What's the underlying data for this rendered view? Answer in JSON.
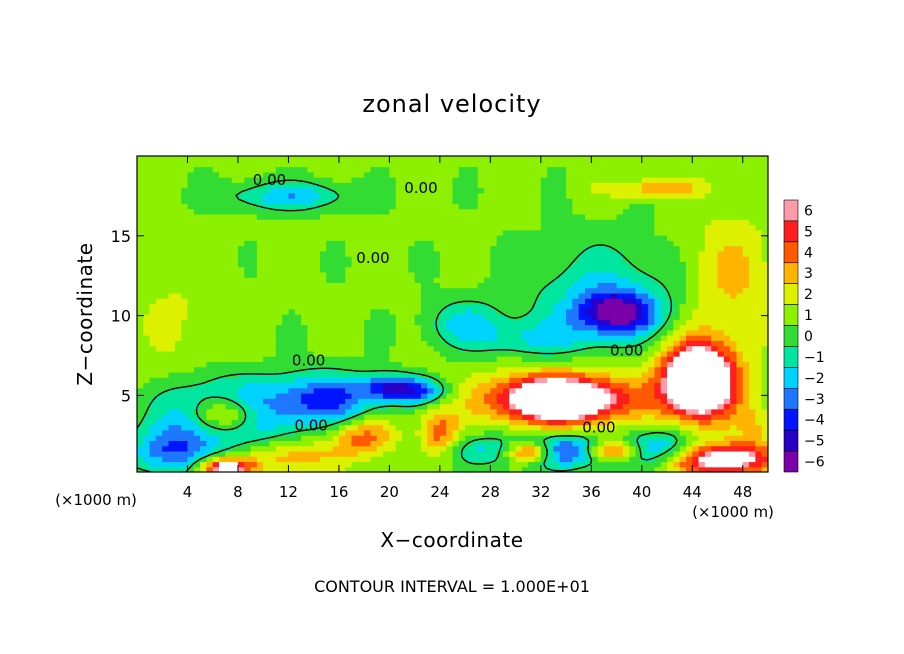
{
  "chart_data": {
    "type": "heatmap",
    "title": "zonal velocity",
    "xlabel": "X−coordinate",
    "ylabel": "Z−coordinate",
    "x_unit": "(×1000 m)",
    "footer": "CONTOUR INTERVAL = 1.000E+01",
    "xlim": [
      0,
      50
    ],
    "ylim": [
      0.2,
      20
    ],
    "x_ticks": [
      4,
      8,
      12,
      16,
      20,
      24,
      28,
      32,
      36,
      40,
      44,
      48
    ],
    "x_tick_labels": [
      "4",
      "8",
      "12",
      "16",
      "20",
      "24",
      "28",
      "32",
      "36",
      "40",
      "44",
      "48"
    ],
    "y_ticks": [
      5,
      10,
      15
    ],
    "y_tick_labels": [
      "5",
      "10",
      "15"
    ],
    "colorbar": {
      "levels": [
        -6,
        -5,
        -4,
        -3,
        -2,
        -1,
        0,
        1,
        2,
        3,
        4,
        5,
        6
      ],
      "labels": [
        "−6",
        "−5",
        "−4",
        "−3",
        "−2",
        "−1",
        "0",
        "1",
        "2",
        "3",
        "4",
        "5",
        "6"
      ],
      "colors": [
        "#7a00a8",
        "#2800c8",
        "#0014ff",
        "#1e78ff",
        "#00d2ff",
        "#00e6a0",
        "#32dc32",
        "#8cf000",
        "#dcf000",
        "#ffb400",
        "#ff5a00",
        "#ff1e1e",
        "#ff9aa8"
      ]
    },
    "contour_labels": [
      {
        "text": "0.00",
        "x": 10.5,
        "z": 18.5
      },
      {
        "text": "0.00",
        "x": 22.5,
        "z": 18.0
      },
      {
        "text": "0.00",
        "x": 18.7,
        "z": 13.6
      },
      {
        "text": "0.00",
        "x": 13.6,
        "z": 7.2
      },
      {
        "text": "0.00",
        "x": 13.8,
        "z": 3.1
      },
      {
        "text": "0.00",
        "x": 38.8,
        "z": 7.8
      },
      {
        "text": "0.00",
        "x": 36.6,
        "z": 3.0
      }
    ],
    "field_features": [
      {
        "kind": "mean",
        "value": 1.2
      },
      {
        "kind": "blob",
        "x": 38.0,
        "z": 10.2,
        "rx": 3.0,
        "rz": 1.3,
        "value": -5
      },
      {
        "kind": "blob",
        "x": 37.0,
        "z": 11.0,
        "rx": 6.0,
        "rz": 3.5,
        "value": -1.5
      },
      {
        "kind": "blob",
        "x": 47.0,
        "z": 12.5,
        "rx": 3.5,
        "rz": 4.0,
        "value": 3.5
      },
      {
        "kind": "blob",
        "x": 12.0,
        "z": 17.5,
        "rx": 5.0,
        "rz": 0.9,
        "value": -2
      },
      {
        "kind": "blob",
        "x": 41.0,
        "z": 18.0,
        "rx": 4.0,
        "rz": 0.6,
        "value": 4
      },
      {
        "kind": "blob",
        "x": 3.0,
        "z": 10.0,
        "rx": 4.0,
        "rz": 4.0,
        "value": 2.2
      },
      {
        "kind": "blob",
        "x": 26.0,
        "z": 9.5,
        "rx": 3.0,
        "rz": 1.5,
        "value": -1.5
      },
      {
        "kind": "blob",
        "x": 31.0,
        "z": 8.5,
        "rx": 4.0,
        "rz": 1.2,
        "value": -1.0
      },
      {
        "kind": "blob",
        "x": 7.0,
        "z": 3.8,
        "rx": 4.5,
        "rz": 2.0,
        "value": -6
      },
      {
        "kind": "blob",
        "x": 7.0,
        "z": 3.8,
        "rx": 2.8,
        "rz": 1.3,
        "value": 9
      },
      {
        "kind": "blob",
        "x": 15.0,
        "z": 4.8,
        "rx": 4.0,
        "rz": 1.6,
        "value": -4
      },
      {
        "kind": "blob",
        "x": 20.0,
        "z": 5.5,
        "rx": 2.0,
        "rz": 0.8,
        "value": -4
      },
      {
        "kind": "blob",
        "x": 22.5,
        "z": 5.3,
        "rx": 2.0,
        "rz": 0.8,
        "value": -3
      },
      {
        "kind": "blob",
        "x": 33.5,
        "z": 4.8,
        "rx": 6.5,
        "rz": 2.0,
        "value": 5
      },
      {
        "kind": "blob",
        "x": 33.5,
        "z": 4.8,
        "rx": 4.5,
        "rz": 1.3,
        "value": 9
      },
      {
        "kind": "blob",
        "x": 44.5,
        "z": 5.8,
        "rx": 3.5,
        "rz": 2.8,
        "value": 6
      },
      {
        "kind": "blob",
        "x": 44.5,
        "z": 6.0,
        "rx": 2.5,
        "rz": 2.0,
        "value": 9
      },
      {
        "kind": "blob",
        "x": 34.0,
        "z": 1.6,
        "rx": 7.5,
        "rz": 1.0,
        "value": -5
      },
      {
        "kind": "blob",
        "x": 37.5,
        "z": 1.6,
        "rx": 2.2,
        "rz": 0.7,
        "value": 9
      },
      {
        "kind": "blob",
        "x": 31.0,
        "z": 1.5,
        "rx": 2.0,
        "rz": 0.7,
        "value": 9
      },
      {
        "kind": "blob",
        "x": 18.0,
        "z": 2.4,
        "rx": 2.5,
        "rz": 1.2,
        "value": 5
      },
      {
        "kind": "blob",
        "x": 24.0,
        "z": 2.6,
        "rx": 1.5,
        "rz": 1.5,
        "value": 5
      },
      {
        "kind": "blob",
        "x": 12.0,
        "z": 1.2,
        "rx": 4.0,
        "rz": 1.0,
        "value": 4
      },
      {
        "kind": "blob",
        "x": 2.5,
        "z": 1.5,
        "rx": 3.0,
        "rz": 1.5,
        "value": -3
      },
      {
        "kind": "blob",
        "x": 7.0,
        "z": 0.5,
        "rx": 2.0,
        "rz": 0.6,
        "value": 9
      },
      {
        "kind": "blob",
        "x": 46.5,
        "z": 1.0,
        "rx": 4.0,
        "rz": 1.0,
        "value": 9
      },
      {
        "kind": "blob",
        "x": 42.0,
        "z": 2.2,
        "rx": 2.5,
        "rz": 1.2,
        "value": -1
      },
      {
        "kind": "blob",
        "x": 49.0,
        "z": 3.0,
        "rx": 1.5,
        "rz": 1.5,
        "value": 3
      }
    ]
  }
}
